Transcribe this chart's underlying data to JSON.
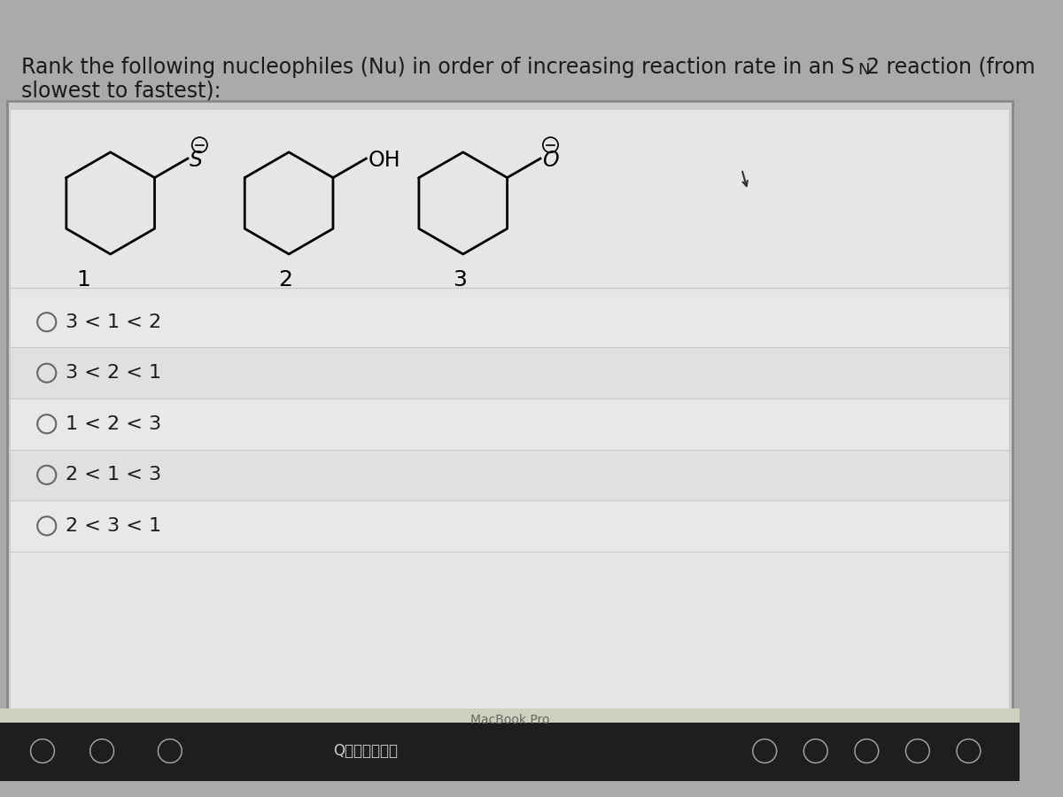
{
  "screen_bg": "#d8d8d8",
  "content_bg": "#e8e8e8",
  "answer_bg": "#e4e4e4",
  "taskbar_bg": "#2a2a2a",
  "macbook_bar_bg": "#c8c8b8",
  "title_line1": "Rank the following nucleophiles (Nu) in order of increasing reaction rate in an S",
  "title_sn_sub": "N",
  "title_sn_rest": "2 reaction (from",
  "title_line2": "slowest to fastest):",
  "answer_options": [
    "3 < 1 < 2",
    "3 < 2 < 1",
    "1 < 2 < 3",
    "2 < 1 < 3",
    "2 < 3 < 1"
  ],
  "compound_labels": [
    "1",
    "2",
    "3"
  ],
  "macbook_text": "MacBook Pro",
  "bottom_search_text": "Q在百度中搜索",
  "text_color": "#1a1a1a",
  "line_color": "#c0c0c0",
  "radio_color": "#555555"
}
